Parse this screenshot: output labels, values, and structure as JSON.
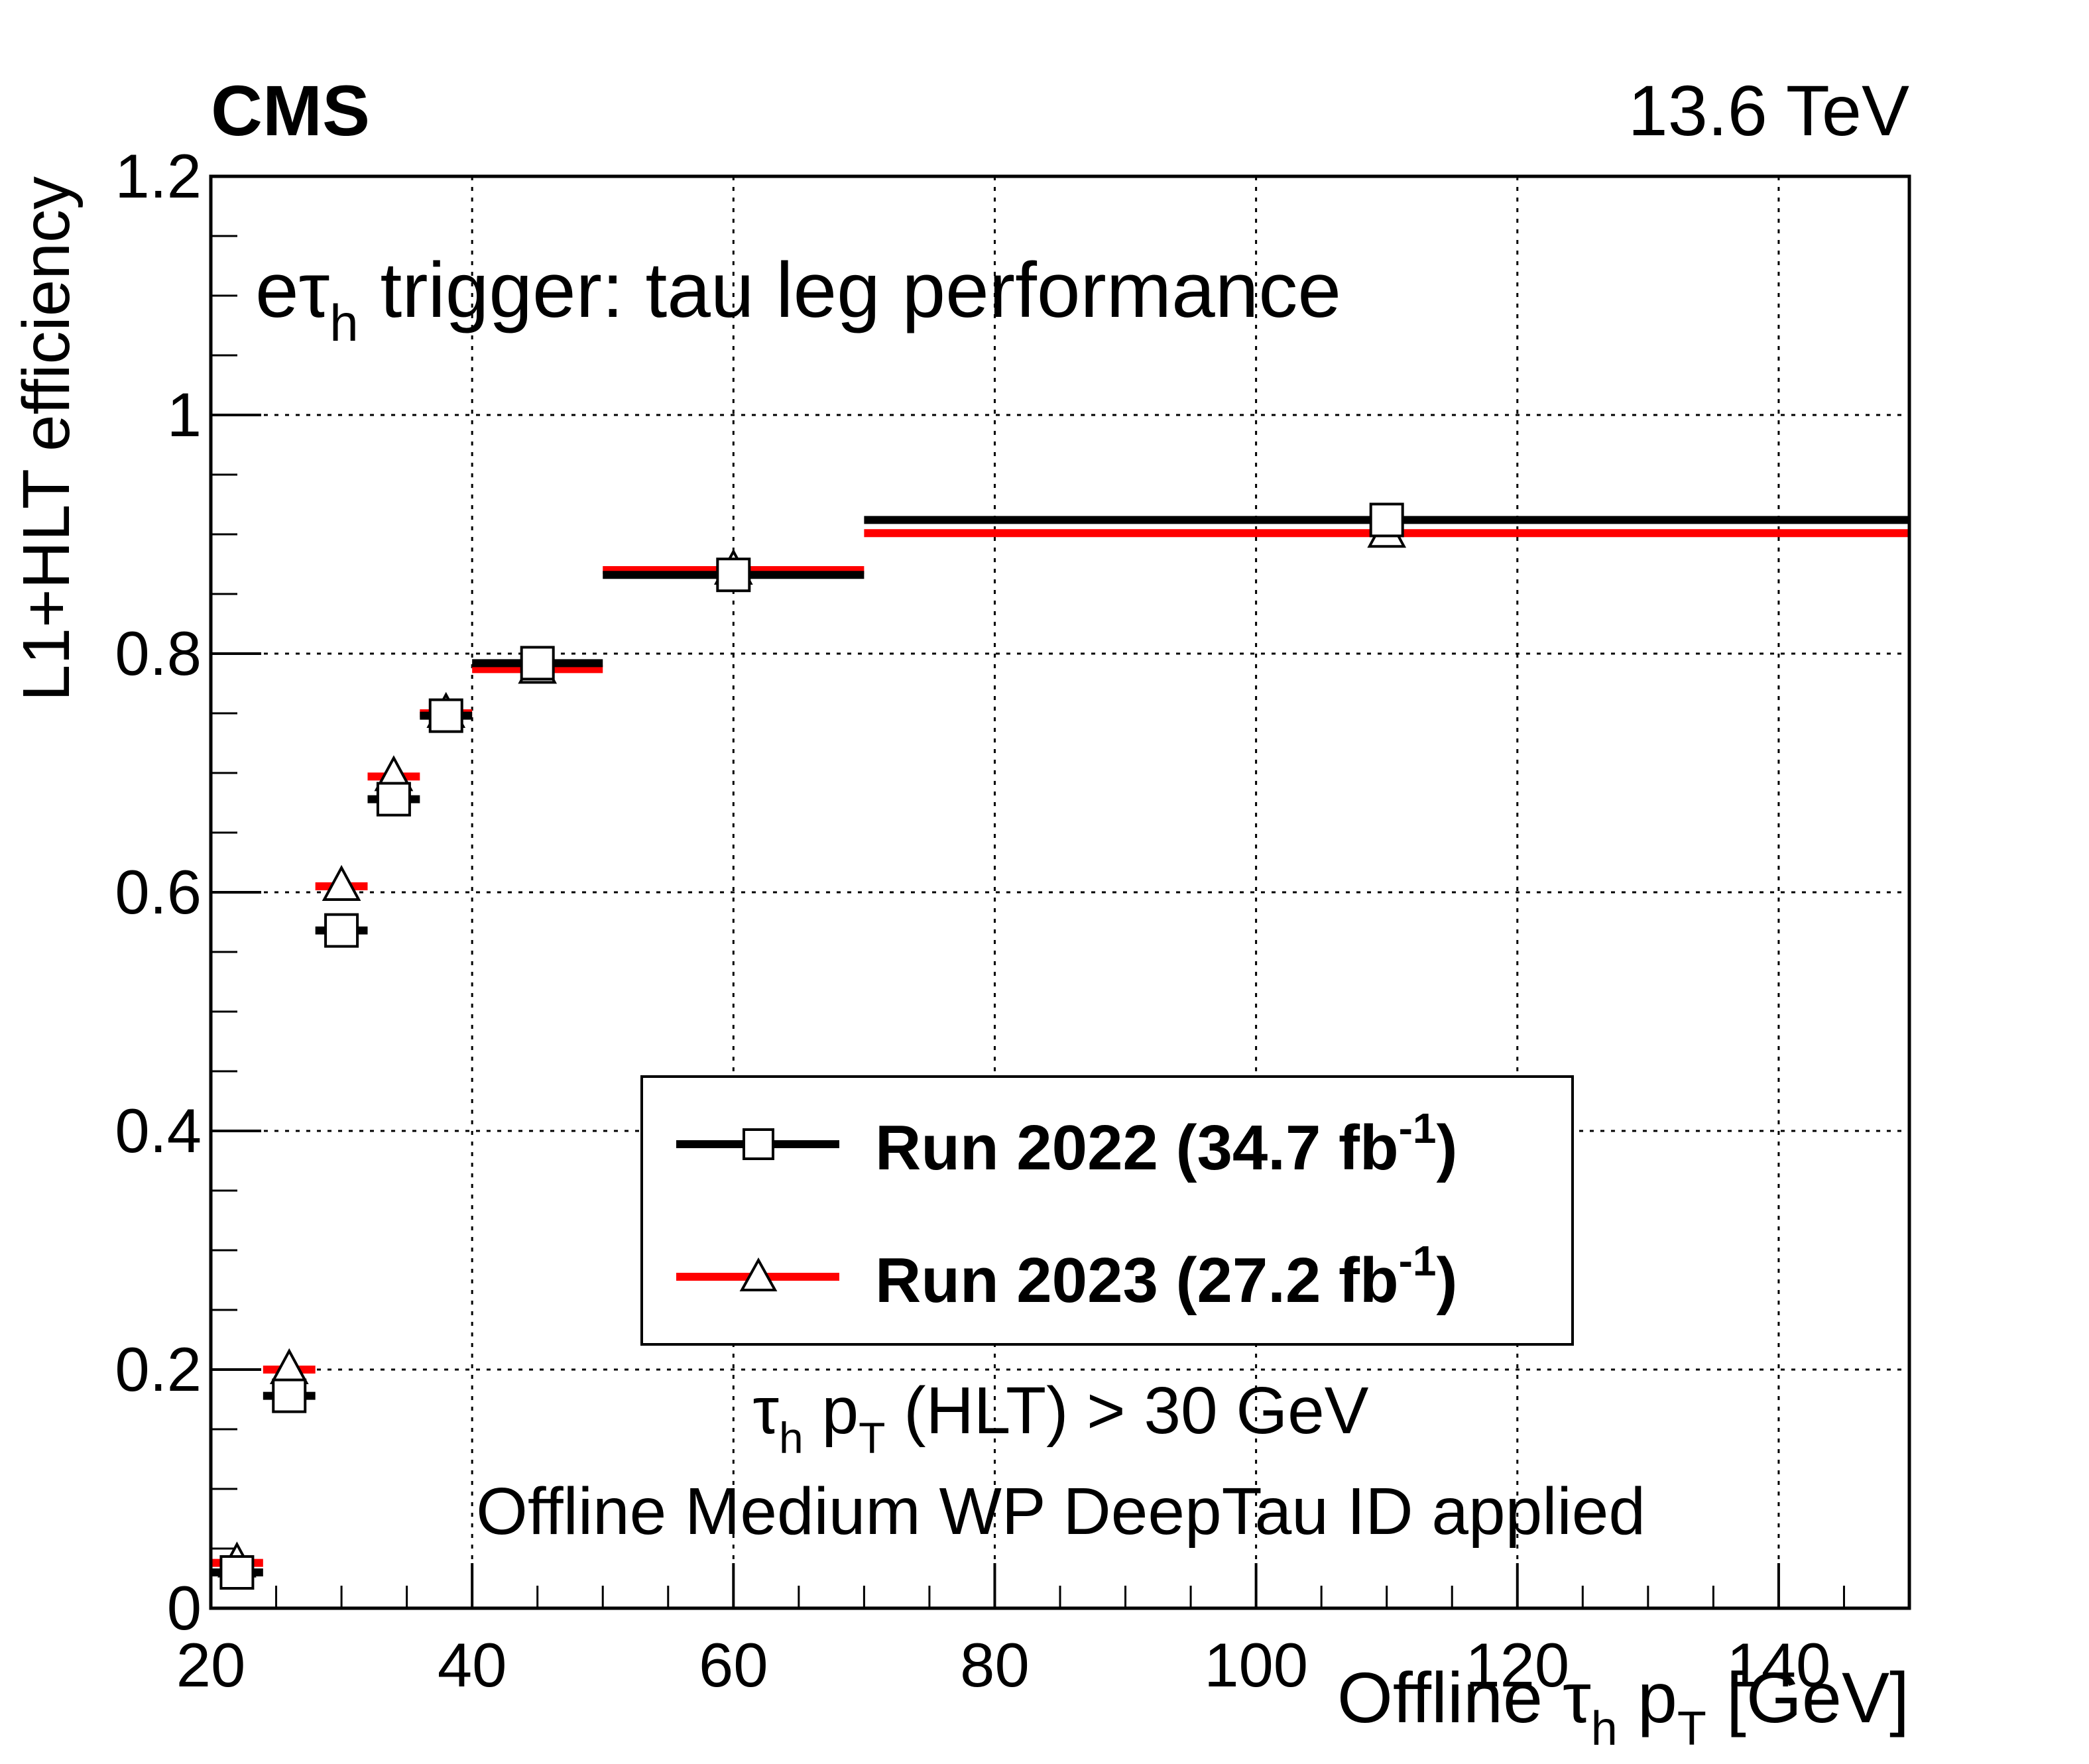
{
  "header": {
    "experiment": "CMS",
    "energy": "13.6 TeV"
  },
  "chart_data": {
    "type": "scatter",
    "title": "",
    "trigger_label": {
      "prefix": "e",
      "tau": "τ",
      "sub": "h",
      "suffix": " trigger: tau leg performance"
    },
    "xlabel": {
      "prefix": "Offline ",
      "tau": "τ",
      "tau_sub": "h",
      "p": " p",
      "p_sub": "T",
      "unit": " [GeV]"
    },
    "ylabel": "L1+HLT efficiency",
    "xlim": [
      20,
      150
    ],
    "ylim": [
      0,
      1.2
    ],
    "xticks": [
      20,
      40,
      60,
      80,
      100,
      120,
      140
    ],
    "xtick_labels": [
      "20",
      "40",
      "60",
      "80",
      "100",
      "120",
      "140"
    ],
    "yticks": [
      0,
      0.2,
      0.4,
      0.6,
      0.8,
      1.0,
      1.2
    ],
    "ytick_labels": [
      "0",
      "0.2",
      "0.4",
      "0.6",
      "0.8",
      "1",
      "1.2"
    ],
    "grid": true,
    "legend_position": "center",
    "selection_text": {
      "tau": "τ",
      "tau_sub": "h",
      "p": " p",
      "p_sub": "T",
      "rest": " (HLT) > 30 GeV",
      "line2": "Offline Medium WP DeepTau ID applied"
    },
    "series": [
      {
        "name": "Run 2022 (34.7 fb",
        "name_sup": "-1",
        "name_close": ")",
        "color": "#000000",
        "marker": "square",
        "points": [
          {
            "x": 22,
            "xlo": 20,
            "xhi": 24,
            "y": 0.03
          },
          {
            "x": 26,
            "xlo": 24,
            "xhi": 28,
            "y": 0.178
          },
          {
            "x": 30,
            "xlo": 28,
            "xhi": 32,
            "y": 0.568
          },
          {
            "x": 34,
            "xlo": 32,
            "xhi": 36,
            "y": 0.678
          },
          {
            "x": 38,
            "xlo": 36,
            "xhi": 40,
            "y": 0.748
          },
          {
            "x": 45,
            "xlo": 40,
            "xhi": 50,
            "y": 0.792
          },
          {
            "x": 60,
            "xlo": 50,
            "xhi": 70,
            "y": 0.866
          },
          {
            "x": 110,
            "xlo": 70,
            "xhi": 150,
            "y": 0.912
          }
        ]
      },
      {
        "name": "Run 2023 (27.2 fb",
        "name_sup": "-1",
        "name_close": ")",
        "color": "#ff0000",
        "marker": "triangle",
        "points": [
          {
            "x": 22,
            "xlo": 20,
            "xhi": 24,
            "y": 0.038
          },
          {
            "x": 26,
            "xlo": 24,
            "xhi": 28,
            "y": 0.2
          },
          {
            "x": 30,
            "xlo": 28,
            "xhi": 32,
            "y": 0.605
          },
          {
            "x": 34,
            "xlo": 32,
            "xhi": 36,
            "y": 0.697
          },
          {
            "x": 38,
            "xlo": 36,
            "xhi": 40,
            "y": 0.75
          },
          {
            "x": 45,
            "xlo": 40,
            "xhi": 50,
            "y": 0.787
          },
          {
            "x": 60,
            "xlo": 50,
            "xhi": 70,
            "y": 0.87
          },
          {
            "x": 110,
            "xlo": 70,
            "xhi": 150,
            "y": 0.901
          }
        ]
      }
    ]
  }
}
